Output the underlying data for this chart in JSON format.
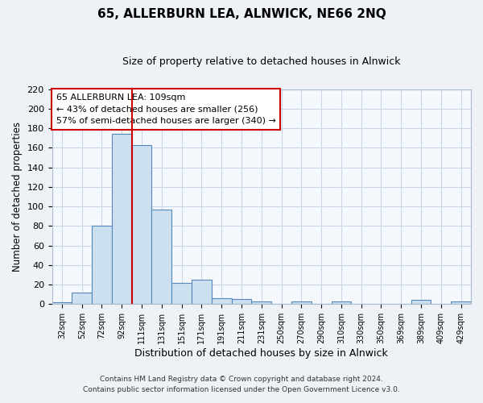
{
  "title": "65, ALLERBURN LEA, ALNWICK, NE66 2NQ",
  "subtitle": "Size of property relative to detached houses in Alnwick",
  "xlabel": "Distribution of detached houses by size in Alnwick",
  "ylabel": "Number of detached properties",
  "footer_lines": [
    "Contains HM Land Registry data © Crown copyright and database right 2024.",
    "Contains public sector information licensed under the Open Government Licence v3.0."
  ],
  "bin_labels": [
    "32sqm",
    "52sqm",
    "72sqm",
    "92sqm",
    "111sqm",
    "131sqm",
    "151sqm",
    "171sqm",
    "191sqm",
    "211sqm",
    "231sqm",
    "250sqm",
    "270sqm",
    "290sqm",
    "310sqm",
    "330sqm",
    "350sqm",
    "369sqm",
    "389sqm",
    "409sqm",
    "429sqm"
  ],
  "bar_heights": [
    2,
    12,
    80,
    174,
    163,
    97,
    22,
    25,
    6,
    5,
    3,
    0,
    3,
    0,
    3,
    0,
    0,
    0,
    4,
    0,
    3
  ],
  "bar_color": "#cce0f0",
  "bar_edge_color": "#5588bb",
  "grid_color": "#c8d8e8",
  "annotation_line1": "65 ALLERBURN LEA: 109sqm",
  "annotation_line2": "← 43% of detached houses are smaller (256)",
  "annotation_line3": "57% of semi-detached houses are larger (340) →",
  "vline_x": 3.5,
  "vline_color": "#cc0000",
  "ylim": [
    0,
    220
  ],
  "yticks": [
    0,
    20,
    40,
    60,
    80,
    100,
    120,
    140,
    160,
    180,
    200,
    220
  ],
  "background_color": "#eef2f7",
  "plot_bg_color": "#f5f8fc",
  "title_fontsize": 11,
  "subtitle_fontsize": 9
}
